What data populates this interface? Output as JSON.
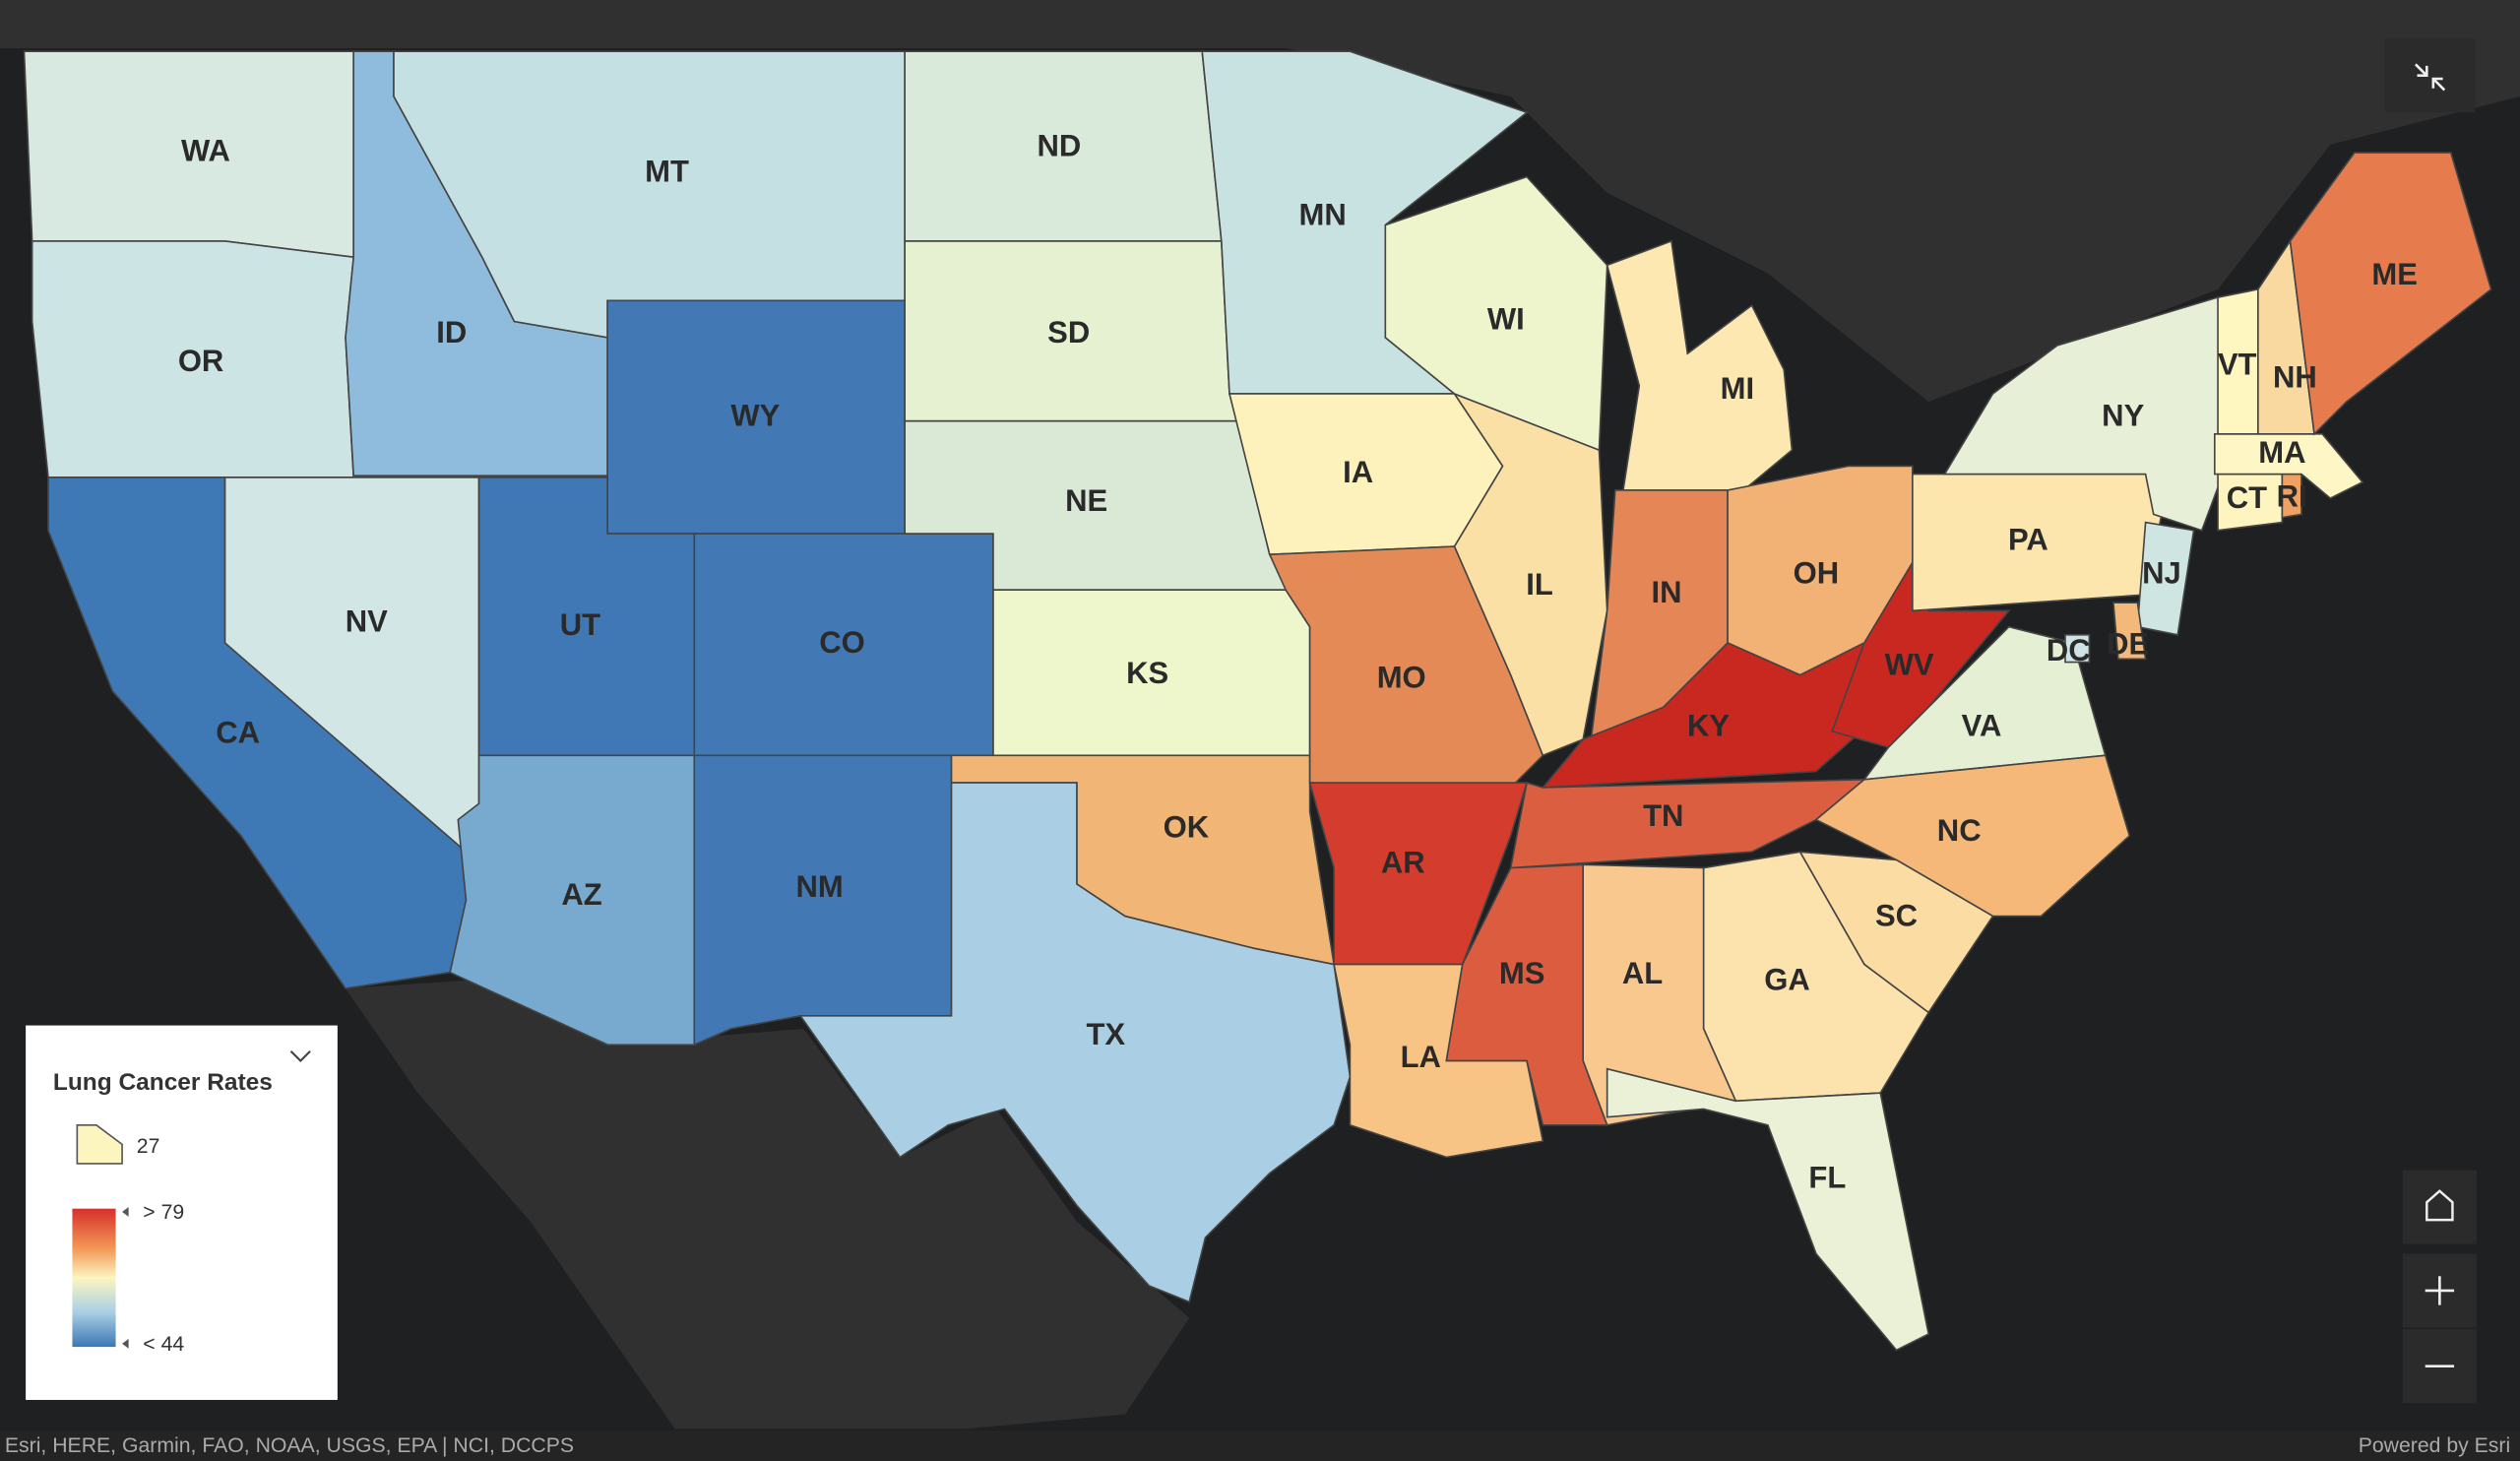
{
  "map": {
    "states": [
      {
        "label": "WA",
        "color": "#d8e9e1"
      },
      {
        "label": "OR",
        "color": "#cde4e4"
      },
      {
        "label": "CA",
        "color": "#3e78b5"
      },
      {
        "label": "NV",
        "color": "#d2e7e5"
      },
      {
        "label": "ID",
        "color": "#8fbcdc"
      },
      {
        "label": "MT",
        "color": "#c5e0e3"
      },
      {
        "label": "WY",
        "color": "#4279b4"
      },
      {
        "label": "UT",
        "color": "#3f78b4"
      },
      {
        "label": "CO",
        "color": "#4279b4"
      },
      {
        "label": "AZ",
        "color": "#78a9cf"
      },
      {
        "label": "NM",
        "color": "#4279b4"
      },
      {
        "label": "ND",
        "color": "#d9eada"
      },
      {
        "label": "SD",
        "color": "#e6f1d2"
      },
      {
        "label": "NE",
        "color": "#dae8d6"
      },
      {
        "label": "KS",
        "color": "#eef6cc"
      },
      {
        "label": "OK",
        "color": "#f1b676"
      },
      {
        "label": "TX",
        "color": "#aacfe4"
      },
      {
        "label": "MN",
        "color": "#c8e2e1"
      },
      {
        "label": "IA",
        "color": "#fdf1bc"
      },
      {
        "label": "MO",
        "color": "#e48a57"
      },
      {
        "label": "AR",
        "color": "#d43c2e"
      },
      {
        "label": "LA",
        "color": "#f8c486"
      },
      {
        "label": "IL",
        "color": "#fae0a5"
      },
      {
        "label": "WI",
        "color": "#eef5cc"
      },
      {
        "label": "MI",
        "color": "#fce8b0"
      },
      {
        "label": "IN",
        "color": "#e48656"
      },
      {
        "label": "OH",
        "color": "#f2b276"
      },
      {
        "label": "KY",
        "color": "#c8281f"
      },
      {
        "label": "TN",
        "color": "#dc5e40"
      },
      {
        "label": "WV",
        "color": "#c82820"
      },
      {
        "label": "VA",
        "color": "#e4efd4"
      },
      {
        "label": "NC",
        "color": "#f5b879"
      },
      {
        "label": "SC",
        "color": "#fbdca3"
      },
      {
        "label": "GA",
        "color": "#fce3ad"
      },
      {
        "label": "AL",
        "color": "#f8c88f"
      },
      {
        "label": "MS",
        "color": "#dc5c40"
      },
      {
        "label": "FL",
        "color": "#eaf1d6"
      },
      {
        "label": "PA",
        "color": "#fde5ae"
      },
      {
        "label": "NY",
        "color": "#e7f0d7"
      },
      {
        "label": "NJ",
        "color": "#cfe5e2"
      },
      {
        "label": "DE",
        "color": "#f3b97a"
      },
      {
        "label": "DC",
        "color": "#cde3e5"
      },
      {
        "label": "CT",
        "color": "#fdf4c0"
      },
      {
        "label": "RI",
        "color": "#f0a060"
      },
      {
        "label": "MA",
        "color": "#fef6c4"
      },
      {
        "label": "VT",
        "color": "#fff6c0"
      },
      {
        "label": "NH",
        "color": "#fad9a0"
      },
      {
        "label": "ME",
        "color": "#e67c4d"
      }
    ]
  },
  "legend": {
    "title": "Lung Cancer Rates",
    "single_label": "27",
    "ramp_high": "> 79",
    "ramp_low": "< 44"
  },
  "attribution": "Esri, HERE, Garmin, FAO, NOAA, USGS, EPA | NCI, DCCPS",
  "powered_by": "Powered by Esri"
}
